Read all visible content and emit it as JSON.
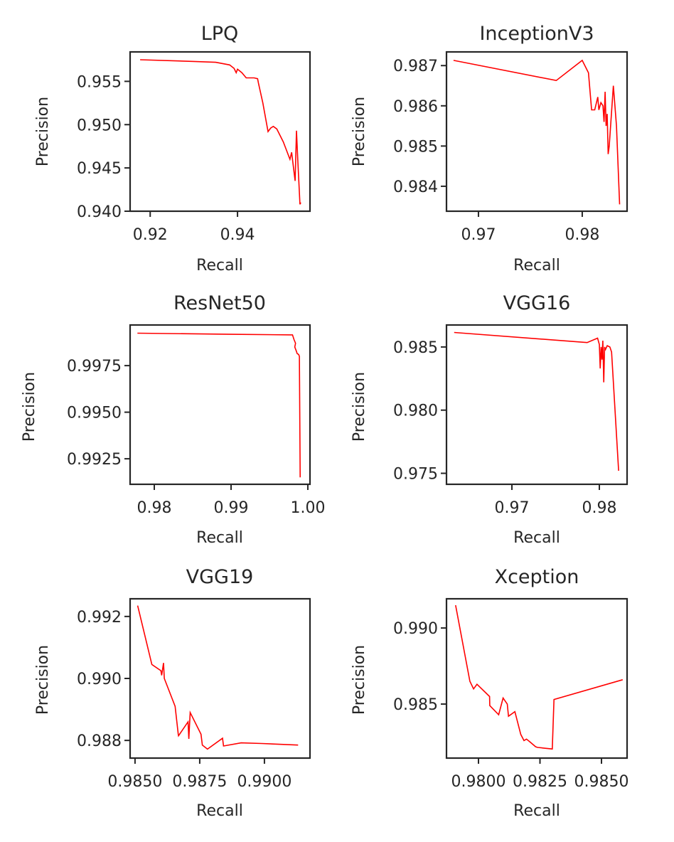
{
  "chart_data": [
    {
      "type": "line",
      "title": "LPQ",
      "xlabel": "Recall",
      "ylabel": "Precision",
      "xlim": [
        0.9154,
        0.9566
      ],
      "ylim": [
        0.94,
        0.9584
      ],
      "xticks": [
        0.92,
        0.94
      ],
      "xtick_labels": [
        "0.92",
        "0.94"
      ],
      "yticks": [
        0.955,
        0.95,
        0.945,
        0.94
      ],
      "ytick_labels": [
        "0.955",
        "0.950",
        "0.945",
        "0.940"
      ],
      "grid": false,
      "series": [
        {
          "name": "LPQ",
          "color": "#ff0000",
          "x": [
            0.9177,
            0.93,
            0.935,
            0.9382,
            0.9392,
            0.9397,
            0.94,
            0.941,
            0.942,
            0.9438,
            0.9446,
            0.9448,
            0.9458,
            0.947,
            0.9476,
            0.9482,
            0.949,
            0.9505,
            0.952,
            0.9524,
            0.9527,
            0.9532,
            0.9535,
            0.9538,
            0.9543,
            0.9545
          ],
          "y": [
            0.9575,
            0.9573,
            0.9572,
            0.9569,
            0.9565,
            0.956,
            0.9564,
            0.956,
            0.9554,
            0.9554,
            0.9553,
            0.9548,
            0.9525,
            0.9492,
            0.9496,
            0.9498,
            0.9495,
            0.948,
            0.946,
            0.9468,
            0.9455,
            0.9435,
            0.9493,
            0.946,
            0.9408,
            0.941
          ]
        }
      ]
    },
    {
      "type": "line",
      "title": "InceptionV3",
      "xlabel": "Recall",
      "ylabel": "Precision",
      "xlim": [
        0.96692,
        0.98432
      ],
      "ylim": [
        0.98338,
        0.98734
      ],
      "xticks": [
        0.97,
        0.98
      ],
      "xtick_labels": [
        "0.97",
        "0.98"
      ],
      "yticks": [
        0.987,
        0.986,
        0.985,
        0.984
      ],
      "ytick_labels": [
        "0.987",
        "0.986",
        "0.985",
        "0.984"
      ],
      "grid": false,
      "series": [
        {
          "name": "InceptionV3",
          "color": "#ff0000",
          "x": [
            0.9676,
            0.9775,
            0.98,
            0.9806,
            0.9809,
            0.9812,
            0.9815,
            0.9816,
            0.9818,
            0.982,
            0.9821,
            0.9822,
            0.9823,
            0.9824,
            0.9825,
            0.9826,
            0.983,
            0.9833,
            0.9836
          ],
          "y": [
            0.98713,
            0.98663,
            0.98713,
            0.98682,
            0.9859,
            0.9859,
            0.98622,
            0.9859,
            0.98608,
            0.986,
            0.9856,
            0.98635,
            0.9855,
            0.9858,
            0.9848,
            0.985,
            0.9865,
            0.9855,
            0.98355
          ]
        }
      ]
    },
    {
      "type": "line",
      "title": "ResNet50",
      "xlabel": "Recall",
      "ylabel": "Precision",
      "xlim": [
        0.97685,
        1.00028
      ],
      "ylim": [
        0.99113,
        0.99968
      ],
      "xticks": [
        0.98,
        0.99,
        1.0
      ],
      "xtick_labels": [
        "0.98",
        "0.99",
        "1.00"
      ],
      "yticks": [
        0.9975,
        0.995,
        0.9925
      ],
      "ytick_labels": [
        "0.9975",
        "0.9950",
        "0.9925"
      ],
      "grid": false,
      "series": [
        {
          "name": "ResNet50",
          "color": "#ff0000",
          "x": [
            0.9778,
            0.99,
            0.998,
            0.9982,
            0.9984,
            0.9983,
            0.9985,
            0.9986,
            0.9988,
            0.9989,
            0.999
          ],
          "y": [
            0.99924,
            0.99918,
            0.99915,
            0.9989,
            0.9987,
            0.9985,
            0.99828,
            0.99815,
            0.9981,
            0.998,
            0.9915
          ]
        }
      ]
    },
    {
      "type": "line",
      "title": "VGG16",
      "xlabel": "Recall",
      "ylabel": "Precision",
      "xlim": [
        0.96252,
        0.98317
      ],
      "ylim": [
        0.97413,
        0.98674
      ],
      "xticks": [
        0.97,
        0.98
      ],
      "xtick_labels": [
        "0.97",
        "0.98"
      ],
      "yticks": [
        0.985,
        0.98,
        0.975
      ],
      "ytick_labels": [
        "0.985",
        "0.980",
        "0.975"
      ],
      "grid": false,
      "series": [
        {
          "name": "VGG16",
          "color": "#ff0000",
          "x": [
            0.9634,
            0.9786,
            0.9798,
            0.98,
            0.9801,
            0.9802,
            0.9803,
            0.9804,
            0.9805,
            0.9806,
            0.9807,
            0.9809,
            0.9812,
            0.9814,
            0.9822
          ],
          "y": [
            0.98615,
            0.98535,
            0.9857,
            0.9852,
            0.9833,
            0.985,
            0.984,
            0.9855,
            0.9822,
            0.985,
            0.9848,
            0.9851,
            0.985,
            0.9846,
            0.9752
          ]
        }
      ]
    },
    {
      "type": "line",
      "title": "VGG19",
      "xlabel": "Recall",
      "ylabel": "Precision",
      "xlim": [
        0.98481,
        0.99176
      ],
      "ylim": [
        0.98743,
        0.99257
      ],
      "xticks": [
        0.985,
        0.9875,
        0.99
      ],
      "xtick_labels": [
        "0.9850",
        "0.9875",
        "0.9900"
      ],
      "yticks": [
        0.992,
        0.99,
        0.988
      ],
      "ytick_labels": [
        "0.992",
        "0.990",
        "0.988"
      ],
      "grid": false,
      "series": [
        {
          "name": "VGG19",
          "color": "#ff0000",
          "x": [
            0.9851,
            0.98565,
            0.986,
            0.98603,
            0.9861,
            0.98613,
            0.98655,
            0.98667,
            0.98668,
            0.98705,
            0.98708,
            0.98713,
            0.98755,
            0.9876,
            0.9878,
            0.98838,
            0.98842,
            0.9891,
            0.9899,
            0.9913
          ],
          "y": [
            0.99235,
            0.99045,
            0.99025,
            0.9901,
            0.9905,
            0.99,
            0.9891,
            0.9882,
            0.98815,
            0.9886,
            0.98805,
            0.9889,
            0.9882,
            0.98785,
            0.98772,
            0.98807,
            0.98782,
            0.98792,
            0.9879,
            0.98785
          ]
        }
      ]
    },
    {
      "type": "line",
      "title": "Xception",
      "xlabel": "Recall",
      "ylabel": "Precision",
      "xlim": [
        0.9787,
        0.98604
      ],
      "ylim": [
        0.98145,
        0.99192
      ],
      "xticks": [
        0.98,
        0.9825,
        0.985
      ],
      "xtick_labels": [
        "0.9800",
        "0.9825",
        "0.9850"
      ],
      "yticks": [
        0.99,
        0.985
      ],
      "ytick_labels": [
        "0.990",
        "0.985"
      ],
      "grid": false,
      "series": [
        {
          "name": "Xception",
          "color": "#ff0000",
          "x": [
            0.97907,
            0.97965,
            0.9798,
            0.97994,
            0.98045,
            0.98046,
            0.98082,
            0.981,
            0.98117,
            0.98122,
            0.98148,
            0.98172,
            0.98185,
            0.98195,
            0.9821,
            0.98232,
            0.9824,
            0.983,
            0.98307,
            0.98586
          ],
          "y": [
            0.9915,
            0.9865,
            0.986,
            0.9863,
            0.9855,
            0.9849,
            0.9843,
            0.9854,
            0.985,
            0.9842,
            0.9845,
            0.983,
            0.9826,
            0.9827,
            0.9825,
            0.9822,
            0.98215,
            0.98205,
            0.9853,
            0.9866
          ]
        }
      ]
    }
  ]
}
